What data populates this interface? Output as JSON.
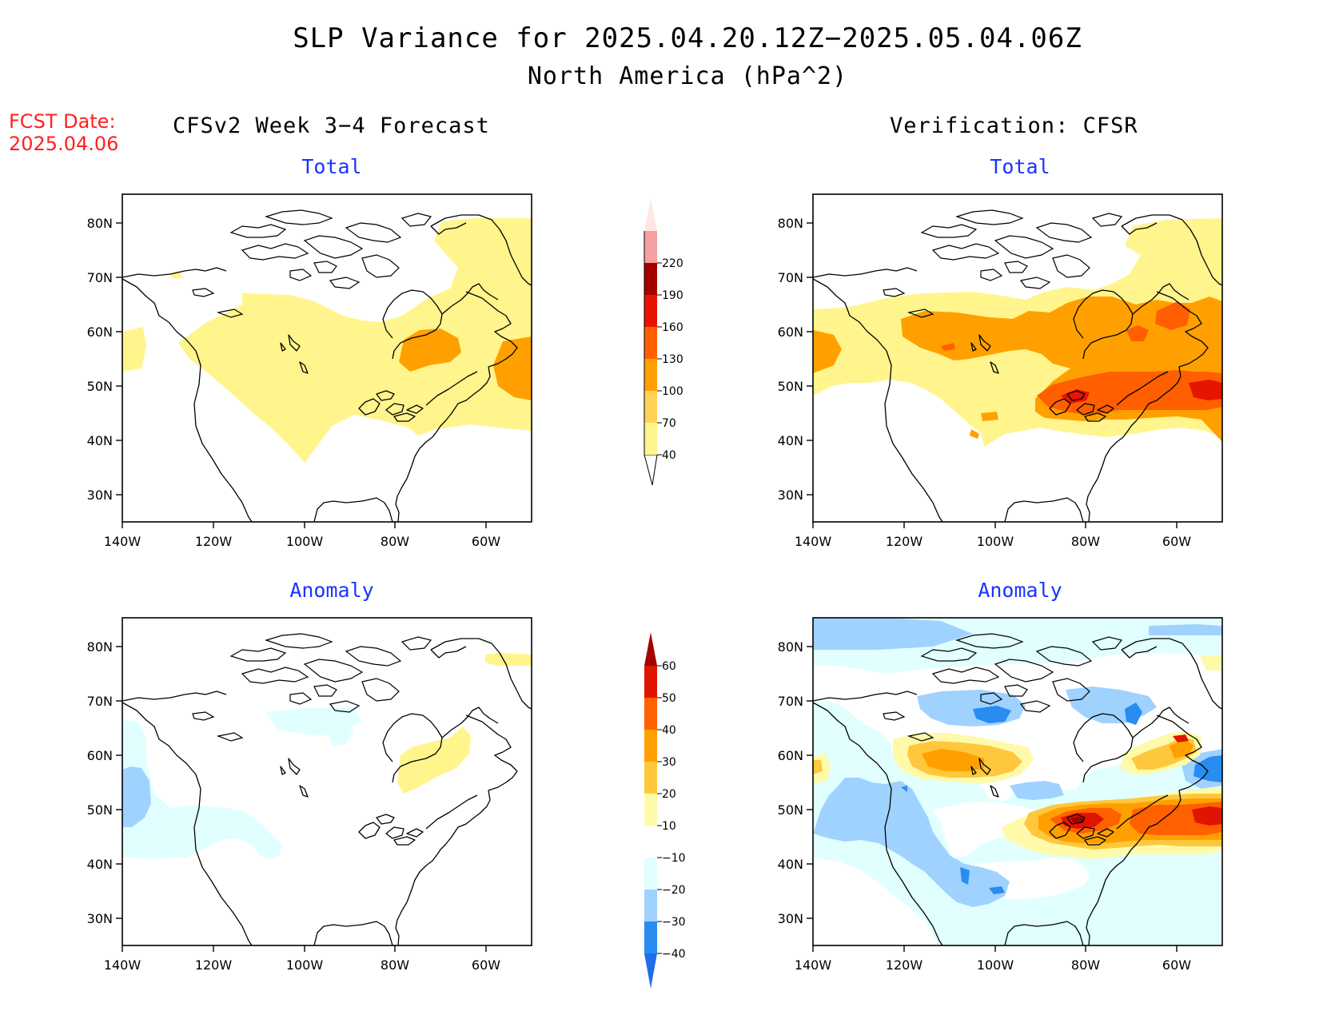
{
  "title": {
    "line1": "SLP Variance for 2025.04.20.12Z−2025.05.04.06Z",
    "line2": "North America (hPa^2)"
  },
  "fcst_date": {
    "label": "FCST Date:",
    "value": "2025.04.06"
  },
  "columns": {
    "left": "CFSv2 Week 3−4 Forecast",
    "right": "Verification: CFSR"
  },
  "panels": {
    "top_left_title": "Total",
    "top_right_title": "Total",
    "bottom_left_title": "Anomaly",
    "bottom_right_title": "Anomaly"
  },
  "axes": {
    "lon_ticks": [
      "140W",
      "120W",
      "100W",
      "80W",
      "60W"
    ],
    "lat_ticks": [
      "80N",
      "70N",
      "60N",
      "50N",
      "40N",
      "30N"
    ]
  },
  "colorbars": {
    "total": {
      "labels": [
        "40",
        "70",
        "100",
        "130",
        "160",
        "190",
        "220"
      ],
      "colors": [
        "#fff58c",
        "#ffd255",
        "#ffa000",
        "#ff5f00",
        "#e61400",
        "#a50000",
        "#f5a0a0",
        "#ffe6e6"
      ]
    },
    "anomaly": {
      "labels": [
        "−40",
        "−30",
        "−20",
        "−10",
        "10",
        "20",
        "30",
        "40",
        "50",
        "60"
      ],
      "colors": [
        "#1e6eeb",
        "#288cf0",
        "#a0d2ff",
        "#e1ffff",
        "#ffffff",
        "#fffaaa",
        "#ffc83c",
        "#ffa000",
        "#ff6000",
        "#e11400",
        "#a50000"
      ]
    }
  },
  "map": {
    "region": "North America",
    "lon_range": [
      "140W",
      "50W"
    ],
    "lat_range": [
      "25N",
      "85N"
    ]
  }
}
